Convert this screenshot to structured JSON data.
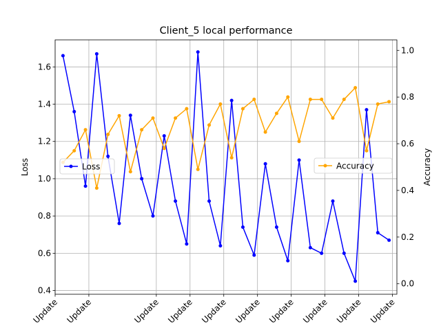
{
  "chart_data": {
    "type": "line",
    "title": "Client_5 local performance",
    "xlabel": "",
    "x_tick_labels": [
      "Update",
      "Update",
      "Update",
      "Update",
      "Update",
      "Update",
      "Update",
      "Update",
      "Update",
      "Update"
    ],
    "x_tick_positions": [
      0,
      3,
      9,
      12,
      15,
      18,
      21,
      24,
      27,
      30
    ],
    "x_count": 30,
    "x": [
      1,
      2,
      3,
      4,
      5,
      6,
      7,
      8,
      9,
      10,
      11,
      12,
      13,
      14,
      15,
      16,
      17,
      18,
      19,
      20,
      21,
      22,
      23,
      24,
      25,
      26,
      27,
      28,
      29,
      30
    ],
    "grid": true,
    "left_axis": {
      "label": "Loss",
      "ylim": [
        0.38,
        1.745
      ],
      "ticks": [
        0.4,
        0.6,
        0.8,
        1.0,
        1.2,
        1.4,
        1.6
      ],
      "tick_labels": [
        "0.4",
        "0.6",
        "0.8",
        "1.0",
        "1.2",
        "1.4",
        "1.6"
      ]
    },
    "right_axis": {
      "label": "Accuracy",
      "ylim": [
        -0.045,
        1.045
      ],
      "ticks": [
        0.0,
        0.2,
        0.4,
        0.6,
        0.8,
        1.0
      ],
      "tick_labels": [
        "0.0",
        "0.2",
        "0.4",
        "0.6",
        "0.8",
        "1.0"
      ]
    },
    "series": [
      {
        "name": "Loss",
        "axis": "left",
        "color": "#0000ff",
        "values": [
          1.66,
          1.36,
          0.96,
          1.67,
          1.12,
          0.76,
          1.34,
          1.0,
          0.8,
          1.23,
          0.88,
          0.65,
          1.68,
          0.88,
          0.64,
          1.42,
          0.74,
          0.59,
          1.08,
          0.74,
          0.56,
          1.1,
          0.63,
          0.6,
          0.88,
          0.6,
          0.45,
          1.37,
          0.71,
          0.67
        ],
        "legend_position": "center-left"
      },
      {
        "name": "Accuracy",
        "axis": "right",
        "color": "#ffa500",
        "values": [
          0.52,
          0.57,
          0.66,
          0.41,
          0.64,
          0.72,
          0.48,
          0.66,
          0.71,
          0.58,
          0.71,
          0.75,
          0.49,
          0.68,
          0.77,
          0.54,
          0.75,
          0.79,
          0.65,
          0.73,
          0.8,
          0.61,
          0.79,
          0.79,
          0.71,
          0.79,
          0.84,
          0.57,
          0.77,
          0.78
        ],
        "legend_position": "center-right"
      }
    ]
  }
}
